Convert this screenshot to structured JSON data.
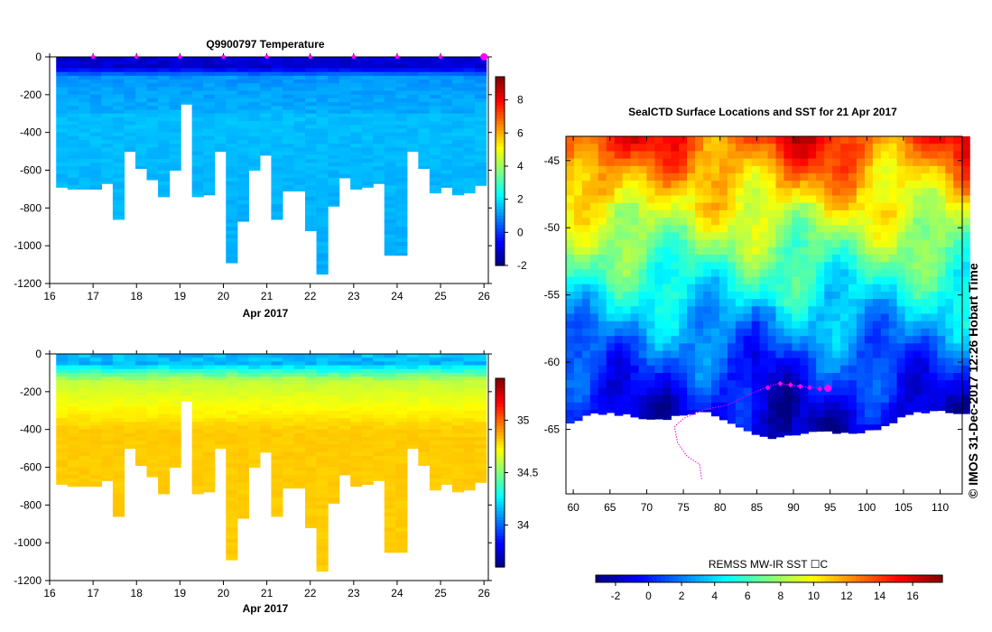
{
  "chart_data": [
    {
      "id": "temperature",
      "type": "heatmap",
      "title": "Q9900797  Temperature",
      "xlabel": "Apr 2017",
      "xlim": [
        16,
        26.1
      ],
      "ylim": [
        -1200,
        0
      ],
      "xticks": [
        "16",
        "17",
        "18",
        "19",
        "20",
        "21",
        "22",
        "23",
        "24",
        "25",
        "26"
      ],
      "yticks": [
        "0",
        "-200",
        "-400",
        "-600",
        "-800",
        "-1000",
        "-1200"
      ],
      "colorbar": {
        "range": [
          -2,
          9.4
        ],
        "ticks": [
          "-2",
          "0",
          "2",
          "4",
          "6",
          "8"
        ]
      },
      "profile_depths_m": [
        690,
        700,
        700,
        700,
        670,
        860,
        500,
        590,
        650,
        740,
        600,
        250,
        740,
        730,
        500,
        1090,
        870,
        600,
        520,
        860,
        710,
        710,
        920,
        1150,
        790,
        640,
        700,
        690,
        670,
        1050,
        1050,
        500,
        590,
        720,
        690,
        730,
        720,
        680
      ],
      "typical_values": {
        "surface": -1.0,
        "mid": 1.2,
        "deep": 1.6
      },
      "surface_markers": [
        "17",
        "18",
        "19",
        "20",
        "21",
        "22",
        "23",
        "24",
        "25",
        "26"
      ]
    },
    {
      "id": "salinity",
      "type": "heatmap",
      "title": "",
      "xlabel": "Apr 2017",
      "xlim": [
        16,
        26.1
      ],
      "ylim": [
        -1200,
        0
      ],
      "xticks": [
        "16",
        "17",
        "18",
        "19",
        "20",
        "21",
        "22",
        "23",
        "24",
        "25",
        "26"
      ],
      "yticks": [
        "0",
        "-200",
        "-400",
        "-600",
        "-800",
        "-1000",
        "-1200"
      ],
      "colorbar": {
        "range": [
          33.6,
          35.4
        ],
        "ticks": [
          "34",
          "34.5",
          "35"
        ]
      },
      "typical_values": {
        "surface": 34.1,
        "mid": 34.6,
        "deep": 34.8
      }
    },
    {
      "id": "sst_map",
      "type": "heatmap",
      "title": "SealCTD Surface Locations and SST for 21 Apr 2017",
      "xlim": [
        59,
        113
      ],
      "ylim": [
        -69.8,
        -43.2
      ],
      "xticks": [
        "60",
        "65",
        "70",
        "75",
        "80",
        "85",
        "90",
        "95",
        "100",
        "105",
        "110"
      ],
      "yticks": [
        "-45",
        "-50",
        "-55",
        "-60",
        "-65"
      ],
      "track_lonlat": [
        [
          77.5,
          -68.7
        ],
        [
          77.2,
          -67.6
        ],
        [
          75.5,
          -67.0
        ],
        [
          74.2,
          -66.0
        ],
        [
          73.8,
          -64.8
        ],
        [
          75.0,
          -64.2
        ],
        [
          78.0,
          -63.5
        ],
        [
          81.0,
          -63.2
        ],
        [
          84.5,
          -62.3
        ],
        [
          86.5,
          -61.8
        ],
        [
          88.0,
          -61.6
        ],
        [
          89.5,
          -61.7
        ],
        [
          91.0,
          -61.8
        ],
        [
          92.5,
          -61.9
        ],
        [
          94.0,
          -62.0
        ],
        [
          94.7,
          -61.95
        ]
      ],
      "track_markers": [
        [
          86.5,
          -61.9
        ],
        [
          88.2,
          -61.6
        ],
        [
          89.6,
          -61.7
        ],
        [
          90.9,
          -61.8
        ],
        [
          92.2,
          -61.9
        ],
        [
          93.6,
          -62.0
        ]
      ],
      "last_position": [
        94.7,
        -61.95
      ],
      "colorbar": {
        "label": "REMSS MW-IR SST ☐C",
        "range": [
          -3.2,
          17.8
        ],
        "ticks": [
          "-2",
          "0",
          "2",
          "4",
          "6",
          "8",
          "10",
          "12",
          "14",
          "16"
        ]
      }
    }
  ],
  "credit": "©  IMOS 31-Dec-2017 12:26 Hobart Time"
}
